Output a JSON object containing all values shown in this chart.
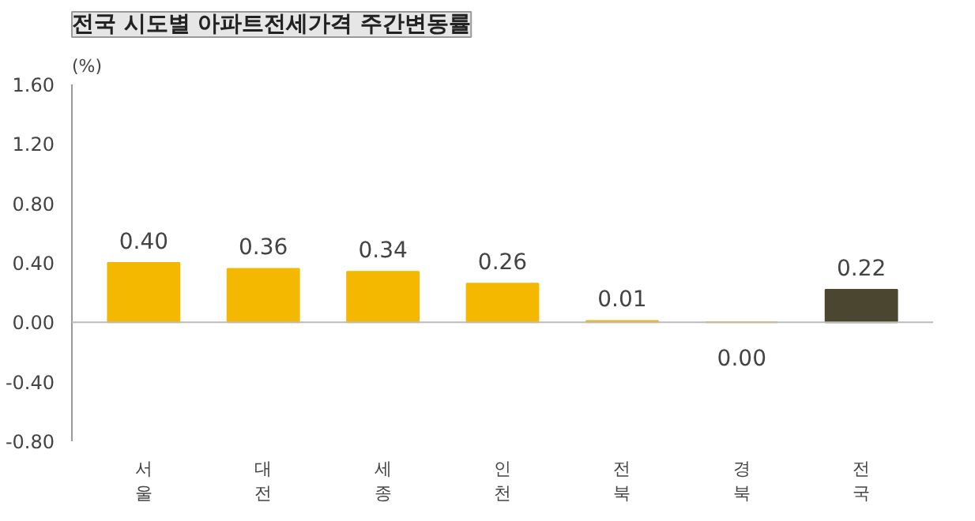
{
  "chart_data": {
    "type": "bar",
    "title": "전국 시도별 아파트전세가격 주간변동률",
    "ylabel": "(%)",
    "categories": [
      "서울",
      "대전",
      "세종",
      "인천",
      "전북",
      "경북",
      "전국"
    ],
    "values": [
      0.4,
      0.36,
      0.34,
      0.26,
      0.01,
      0.0,
      0.22
    ],
    "value_labels": [
      "0.40",
      "0.36",
      "0.34",
      "0.26",
      "0.01",
      "0.00",
      "0.22"
    ],
    "colors": [
      "#f5b800",
      "#f5b800",
      "#f5b800",
      "#f5b800",
      "#f5b800",
      "#f5b800",
      "#4b4630"
    ],
    "ylim": [
      -0.8,
      1.6
    ],
    "yticks": [
      {
        "value": -0.8,
        "label": "-0.80"
      },
      {
        "value": -0.4,
        "label": "-0.40"
      },
      {
        "value": 0,
        "label": "0.00"
      },
      {
        "value": 0.4,
        "label": "0.40"
      },
      {
        "value": 0.8,
        "label": "0.80"
      },
      {
        "value": 1.2,
        "label": "1.20"
      },
      {
        "value": 1.6,
        "label": "1.60"
      }
    ],
    "ref_lines": [
      {
        "axis": "y",
        "value": 0,
        "color": "#bbbbbb"
      }
    ],
    "grid": false
  }
}
